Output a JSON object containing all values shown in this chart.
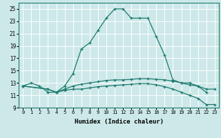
{
  "xlabel": "Humidex (Indice chaleur)",
  "background_color": "#cde8e8",
  "grid_color": "#ffffff",
  "line_color": "#1a7a6e",
  "xlim": [
    -0.5,
    23.5
  ],
  "ylim": [
    9,
    26
  ],
  "yticks": [
    9,
    11,
    13,
    15,
    17,
    19,
    21,
    23,
    25
  ],
  "xticks": [
    0,
    1,
    2,
    3,
    4,
    5,
    6,
    7,
    8,
    9,
    10,
    11,
    12,
    13,
    14,
    15,
    16,
    17,
    18,
    19,
    20,
    21,
    22,
    23
  ],
  "series": [
    {
      "x": [
        0,
        1,
        2,
        3,
        4,
        5,
        6,
        7,
        8,
        9,
        10,
        11,
        12,
        13,
        14,
        15,
        16,
        17,
        18,
        19,
        20,
        21,
        22
      ],
      "y": [
        12.5,
        13.0,
        12.5,
        11.5,
        11.5,
        12.5,
        14.5,
        18.5,
        19.5,
        21.5,
        23.5,
        25.0,
        25.0,
        23.5,
        23.5,
        23.5,
        20.5,
        17.5,
        13.5,
        13.0,
        13.0,
        12.5,
        11.5
      ]
    },
    {
      "x": [
        0,
        3,
        4,
        5,
        6,
        7,
        8,
        9,
        10,
        11,
        12,
        13,
        14,
        15,
        16,
        17,
        18,
        19,
        20,
        21,
        22,
        23
      ],
      "y": [
        12.5,
        12.0,
        11.5,
        12.0,
        12.5,
        12.8,
        13.0,
        13.2,
        13.4,
        13.5,
        13.5,
        13.6,
        13.7,
        13.7,
        13.6,
        13.5,
        13.3,
        13.0,
        12.7,
        12.5,
        12.0,
        12.0
      ]
    },
    {
      "x": [
        0,
        3,
        4,
        5,
        6,
        7,
        8,
        9,
        10,
        11,
        12,
        13,
        14,
        15,
        16,
        17,
        18,
        19,
        20,
        21,
        22,
        23
      ],
      "y": [
        12.5,
        12.0,
        11.5,
        11.8,
        12.0,
        12.0,
        12.2,
        12.4,
        12.5,
        12.6,
        12.7,
        12.8,
        12.9,
        12.9,
        12.7,
        12.4,
        12.0,
        11.5,
        11.0,
        10.5,
        9.5,
        9.5
      ]
    }
  ]
}
